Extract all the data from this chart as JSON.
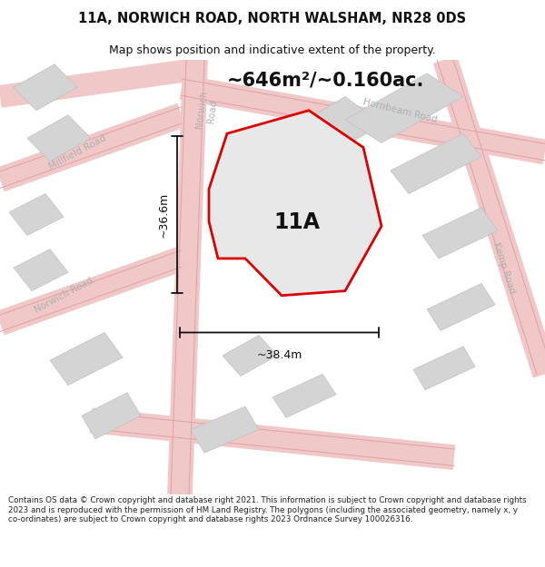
{
  "title": "11A, NORWICH ROAD, NORTH WALSHAM, NR28 0DS",
  "subtitle": "Map shows position and indicative extent of the property.",
  "area_text": "~646m²/~0.160ac.",
  "dim_width": "~38.4m",
  "dim_height": "~36.6m",
  "label_11A": "11A",
  "footer": "Contains OS data © Crown copyright and database right 2021. This information is subject to Crown copyright and database rights 2023 and is reproduced with the permission of HM Land Registry. The polygons (including the associated geometry, namely x, y co-ordinates) are subject to Crown copyright and database rights 2023 Ordnance Survey 100026316.",
  "map_bg": "#ffffff",
  "building_fill": "#d8d8d8",
  "building_edge": "#cccccc",
  "road_fill": "#f2c8c8",
  "road_outline": "#e8a0a0",
  "road_label_color": "#b0b0b0",
  "property_fill": "#e8e8e8",
  "property_edge": "#dd0000",
  "dim_line_color": "#111111",
  "title_color": "#111111",
  "footer_color": "#222222"
}
